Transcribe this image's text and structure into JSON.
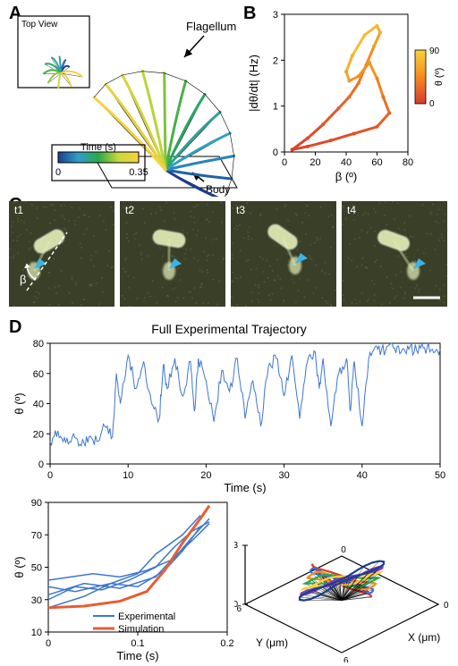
{
  "labels": {
    "A": "A",
    "B": "B",
    "C": "C",
    "D": "D",
    "topView": "Top View",
    "flagellum": "Flagellum",
    "bodyLbl": "Body",
    "timeS": "Time (s)",
    "beta": "β (º)",
    "betaOnly": "β",
    "theta": "θ (º)",
    "dthetadt": "|dθ/dt| (Hz)",
    "fullTraj": "Full Experimental Trajectory",
    "experimental": "Experimental",
    "simulation": "Simulation",
    "um": "μm",
    "X": "X (μm)",
    "Y": "Y (μm)",
    "Z": "Z (μm)",
    "t1": "t1",
    "t2": "t2",
    "t3": "t3",
    "t4": "t4",
    "timeLegend0": "0",
    "timeLegend1": "0.35",
    "cbar0": "0",
    "cbar90": "90"
  },
  "colors": {
    "sim": "#e85d2f",
    "exp": "#3c76d0",
    "lineBlue": "#2f6fd6",
    "lineCyan": "#4fc8e8",
    "lineYellow": "#f7d13c",
    "lineOrange": "#f58a1f",
    "lineRed": "#d83a2a",
    "microscopyBg": "#3a4028",
    "microscopyCell": "#e4f0b8",
    "arrowCyan": "#39b3e8",
    "black": "#000000",
    "multi": [
      "#d83a2a",
      "#2f6fd6",
      "#f58a1f",
      "#2aa84a",
      "#f7d13c",
      "#7a3db8",
      "#1a3f8f"
    ]
  },
  "panelA": {
    "gradientStops": [
      {
        "t": 0,
        "c": "#1a3f8f"
      },
      {
        "t": 0.25,
        "c": "#2f9fc8"
      },
      {
        "t": 0.5,
        "c": "#2aa84a"
      },
      {
        "t": 0.75,
        "c": "#c8d83a"
      },
      {
        "t": 1,
        "c": "#f7d13c"
      }
    ]
  },
  "panelB": {
    "xlim": [
      0,
      80
    ],
    "ylim": [
      0,
      3
    ],
    "xticks": [
      0,
      20,
      40,
      60,
      80
    ],
    "yticks": [
      0,
      1,
      2,
      3
    ],
    "colorbarTicks": [
      0,
      90
    ],
    "loop": [
      {
        "b": 5,
        "h": 0.05,
        "t": 5
      },
      {
        "b": 15,
        "h": 0.3,
        "t": 10
      },
      {
        "b": 25,
        "h": 0.6,
        "t": 15
      },
      {
        "b": 35,
        "h": 0.95,
        "t": 22
      },
      {
        "b": 42,
        "h": 1.2,
        "t": 28
      },
      {
        "b": 48,
        "h": 1.5,
        "t": 35
      },
      {
        "b": 53,
        "h": 1.9,
        "t": 45
      },
      {
        "b": 58,
        "h": 2.3,
        "t": 55
      },
      {
        "b": 62,
        "h": 2.6,
        "t": 65
      },
      {
        "b": 60,
        "h": 2.75,
        "t": 75
      },
      {
        "b": 52,
        "h": 2.55,
        "t": 78
      },
      {
        "b": 44,
        "h": 2.1,
        "t": 70
      },
      {
        "b": 40,
        "h": 1.75,
        "t": 60
      },
      {
        "b": 42,
        "h": 1.55,
        "t": 52
      },
      {
        "b": 48,
        "h": 1.65,
        "t": 48
      },
      {
        "b": 55,
        "h": 1.95,
        "t": 50
      },
      {
        "b": 60,
        "h": 1.6,
        "t": 40
      },
      {
        "b": 64,
        "h": 1.2,
        "t": 30
      },
      {
        "b": 68,
        "h": 0.85,
        "t": 22
      },
      {
        "b": 60,
        "h": 0.55,
        "t": 15
      },
      {
        "b": 45,
        "h": 0.4,
        "t": 12
      },
      {
        "b": 30,
        "h": 0.25,
        "t": 9
      },
      {
        "b": 15,
        "h": 0.12,
        "t": 7
      },
      {
        "b": 5,
        "h": 0.05,
        "t": 5
      }
    ]
  },
  "panelD1": {
    "xlim": [
      0,
      50
    ],
    "ylim": [
      0,
      80
    ],
    "xticks": [
      0,
      10,
      20,
      30,
      40,
      50
    ],
    "yticks": [
      0,
      20,
      40,
      60,
      80
    ],
    "signal_t": [
      0,
      1,
      2,
      3,
      4,
      5,
      6,
      7,
      8,
      8.5,
      9,
      10,
      11,
      12,
      13,
      14,
      14.5,
      15,
      16,
      17,
      18,
      18.5,
      19,
      20,
      21,
      22,
      23,
      24,
      25,
      26,
      27,
      28,
      29,
      30,
      31,
      32,
      33,
      34,
      34.5,
      35,
      36,
      37,
      38,
      38.5,
      39,
      40,
      41,
      42,
      43,
      44,
      45,
      46,
      47,
      48,
      49,
      50
    ],
    "signal_v": [
      15,
      22,
      14,
      20,
      12,
      18,
      15,
      25,
      18,
      60,
      40,
      72,
      50,
      68,
      40,
      30,
      65,
      50,
      70,
      45,
      68,
      35,
      70,
      55,
      28,
      62,
      48,
      70,
      30,
      55,
      25,
      65,
      70,
      45,
      72,
      30,
      68,
      74,
      50,
      70,
      25,
      60,
      70,
      35,
      68,
      25,
      74,
      76,
      75,
      77,
      74,
      76,
      75,
      77,
      76,
      76
    ]
  },
  "panelD2": {
    "xlim": [
      0,
      0.2
    ],
    "ylim": [
      10,
      90
    ],
    "xticks": [
      0,
      0.1,
      0.2
    ],
    "yticks": [
      10,
      30,
      50,
      70,
      90
    ],
    "sim_t": [
      0,
      0.04,
      0.08,
      0.11,
      0.13,
      0.15,
      0.17,
      0.18
    ],
    "sim_v": [
      25,
      26,
      29,
      35,
      48,
      65,
      80,
      88
    ],
    "exp_traces": [
      {
        "t": [
          0,
          0.03,
          0.06,
          0.09,
          0.12,
          0.14,
          0.16,
          0.18
        ],
        "v": [
          30,
          38,
          36,
          42,
          50,
          62,
          72,
          78
        ]
      },
      {
        "t": [
          0,
          0.04,
          0.07,
          0.1,
          0.13,
          0.15,
          0.17
        ],
        "v": [
          25,
          32,
          40,
          38,
          48,
          60,
          75
        ]
      },
      {
        "t": [
          0,
          0.05,
          0.08,
          0.11,
          0.14,
          0.16,
          0.18
        ],
        "v": [
          42,
          46,
          44,
          48,
          55,
          68,
          80
        ]
      },
      {
        "t": [
          0,
          0.03,
          0.07,
          0.1,
          0.12,
          0.15,
          0.17
        ],
        "v": [
          38,
          35,
          40,
          46,
          58,
          70,
          82
        ]
      },
      {
        "t": [
          0,
          0.04,
          0.08,
          0.12,
          0.14,
          0.16,
          0.18
        ],
        "v": [
          33,
          40,
          37,
          44,
          56,
          66,
          77
        ]
      }
    ]
  },
  "panelD3": {
    "xlim": [
      0,
      6
    ],
    "ylim": [
      0,
      6
    ],
    "zlim": [
      0,
      3
    ],
    "xticks": [
      0,
      6
    ],
    "yticks": [
      0,
      6
    ],
    "zticks": [
      0,
      3
    ]
  }
}
